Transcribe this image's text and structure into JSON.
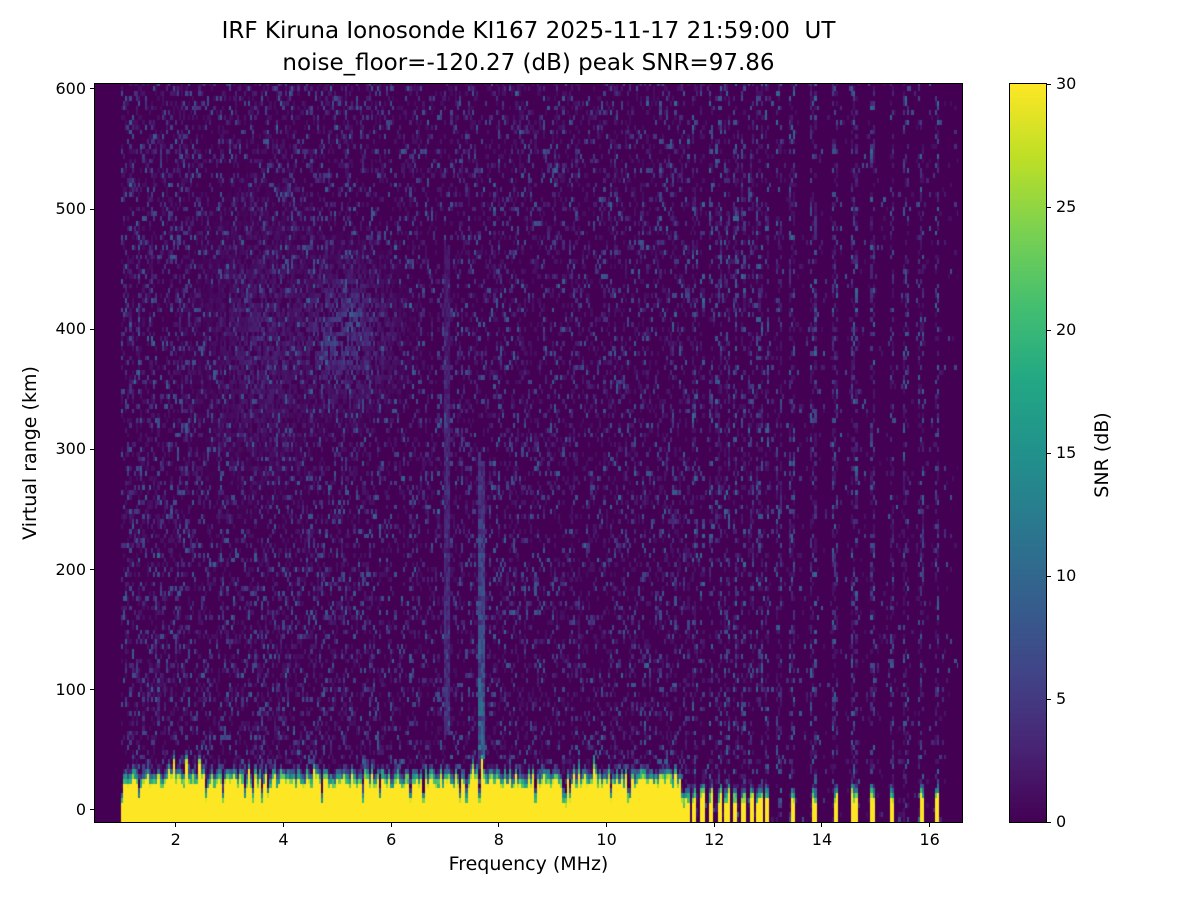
{
  "chart_data": {
    "type": "heatmap",
    "title": "IRF Kiruna Ionosonde KI167 2025-11-17 21:59:00  UT",
    "subtitle": "noise_floor=-120.27 (dB) peak SNR=97.86",
    "station": "IRF Kiruna Ionosonde KI167",
    "timestamp_ut": "2025-11-17 21:59:00",
    "noise_floor_db": -120.27,
    "peak_snr_db": 97.86,
    "xlabel": "Frequency (MHz)",
    "ylabel": "Virtual range (km)",
    "colorbar_label": "SNR (dB)",
    "colormap": "viridis",
    "xlim": [
      0.5,
      16.6
    ],
    "ylim": [
      -10,
      604
    ],
    "xticks": [
      2,
      4,
      6,
      8,
      10,
      12,
      14,
      16
    ],
    "yticks": [
      0,
      100,
      200,
      300,
      400,
      500,
      600
    ],
    "colorbar_ticks": [
      0,
      5,
      10,
      15,
      20,
      25,
      30
    ],
    "clim": [
      0,
      30
    ],
    "grid": {
      "f_start": 1.0,
      "f_end": 16.5,
      "df": 0.04,
      "dr": 4
    },
    "seed": 1167,
    "features": {
      "ground_clutter": {
        "typical_top_km": 32,
        "snr": 30,
        "fringe_km": 8
      },
      "interference_start": 11.55,
      "stripe_halfwidth": 0.05,
      "bar_halfwidth": 0.045,
      "interference_freqs": [
        11.63,
        11.79,
        11.94,
        12.09,
        12.24,
        12.39,
        12.54,
        12.69,
        12.84,
        12.99,
        13.2,
        13.45,
        13.85,
        14.25,
        14.6,
        14.95,
        15.3,
        15.55,
        15.85,
        16.15
      ],
      "bar_freqs": [
        11.63,
        11.79,
        11.94,
        12.09,
        12.24,
        12.39,
        12.54,
        12.69,
        12.84,
        12.99,
        13.45,
        13.85,
        14.25,
        14.6,
        14.95,
        15.3,
        15.85,
        16.15
      ],
      "echo_streaks": [
        {
          "f": 7.05,
          "w": 0.05,
          "r0": 60,
          "r1": 470,
          "amp": 5
        },
        {
          "f": 7.68,
          "w": 0.07,
          "r0": 40,
          "r1": 290,
          "amp": 11
        }
      ],
      "diffuse_patches": [
        {
          "f": 5.15,
          "fw": 0.85,
          "r": 395,
          "rw": 50,
          "amp": 5
        },
        {
          "f": 5.3,
          "fw": 0.22,
          "r": 408,
          "rw": 16,
          "amp": 9
        },
        {
          "f": 3.6,
          "fw": 0.9,
          "r": 390,
          "rw": 90,
          "amp": 2.5
        }
      ]
    }
  }
}
